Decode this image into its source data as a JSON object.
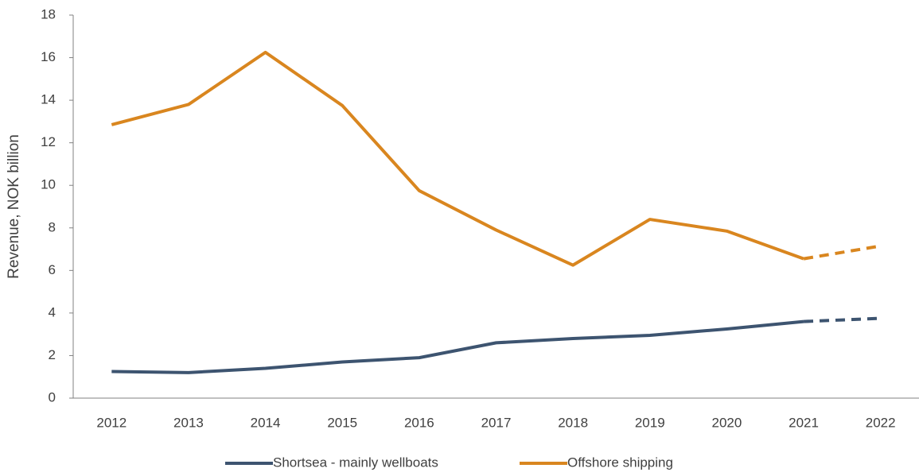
{
  "chart_data": {
    "type": "line",
    "y_label": "Revenue, NOK billion",
    "categories": [
      "2012",
      "2013",
      "2014",
      "2015",
      "2016",
      "2017",
      "2018",
      "2019",
      "2020",
      "2021",
      "2022"
    ],
    "series": [
      {
        "name": "Shortsea - mainly wellboats",
        "color": "#3d5470",
        "values": [
          1.25,
          1.2,
          1.4,
          1.7,
          1.9,
          2.6,
          2.8,
          2.95,
          3.25,
          3.6,
          3.75
        ]
      },
      {
        "name": "Offshore shipping",
        "color": "#d9861f",
        "values": [
          12.85,
          13.8,
          16.25,
          13.75,
          9.75,
          7.9,
          6.25,
          8.4,
          7.85,
          6.55,
          7.15
        ]
      }
    ],
    "forecast_from": "2021",
    "ylim": [
      0,
      18
    ],
    "yticks": [
      0,
      2,
      4,
      6,
      8,
      10,
      12,
      14,
      16,
      18
    ],
    "grid": false,
    "legend": "bottom"
  }
}
